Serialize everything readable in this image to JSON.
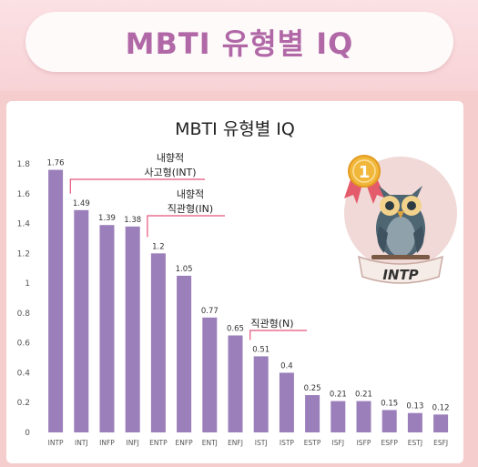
{
  "header": {
    "banner_title": "MBTI 유형별 IQ"
  },
  "colors": {
    "bar": "#9b7fba",
    "callout": "#e5557a",
    "banner_text": "#b068a6"
  },
  "chart_data": {
    "type": "bar",
    "title": "MBTI 유형별 IQ",
    "categories": [
      "INTP",
      "INTJ",
      "INFP",
      "INFJ",
      "ENTP",
      "ENFP",
      "ENTJ",
      "ENFJ",
      "ISTJ",
      "ISTP",
      "ESTP",
      "ISFJ",
      "ISFP",
      "ESFP",
      "ESTJ",
      "ESFJ"
    ],
    "values": [
      1.76,
      1.49,
      1.39,
      1.38,
      1.2,
      1.05,
      0.77,
      0.65,
      0.51,
      0.4,
      0.25,
      0.21,
      0.21,
      0.15,
      0.13,
      0.12
    ],
    "value_labels": [
      "1.76",
      "1.49",
      "1.39",
      "1.38",
      "1.2",
      "1.05",
      "0.77",
      "0.65",
      "0.51",
      "0.4",
      "0.25",
      "0.21",
      "0.21",
      "0.15",
      "0.13",
      "0.12"
    ],
    "ylim": [
      0,
      1.8
    ],
    "yticks": [
      "0",
      "0.2",
      "0.4",
      "0.6",
      "0.8",
      "1",
      "1.2",
      "1.4",
      "1.6",
      "1.8"
    ],
    "grid": false,
    "annotations": [
      {
        "lines": [
          "내향적",
          "사고형(INT)"
        ],
        "from_category": 1
      },
      {
        "lines": [
          "내향적",
          "직관형(IN)"
        ],
        "from_category": 4
      },
      {
        "lines": [
          "직관형(N)"
        ],
        "from_category": 8
      }
    ],
    "badge": {
      "rank": "1",
      "label": "INTP"
    }
  }
}
